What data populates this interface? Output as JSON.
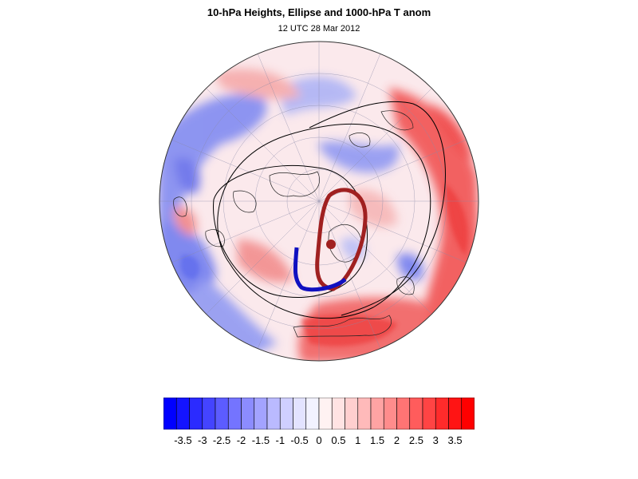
{
  "header": {
    "title": "10-hPa Heights, Ellipse and 1000-hPa T anom",
    "subtitle": "12 UTC 28 Mar 2012"
  },
  "colorbar": {
    "labels": [
      "-3.5",
      "-3",
      "-2.5",
      "-2",
      "-1.5",
      "-1",
      "-0.5",
      "0",
      "0.5",
      "1",
      "1.5",
      "2",
      "2.5",
      "3",
      "3.5"
    ],
    "colors": [
      "#0000ff",
      "#1414ff",
      "#2b2bff",
      "#4444ff",
      "#5c5cff",
      "#7474ff",
      "#8c8cff",
      "#a3a3ff",
      "#babaff",
      "#cfcfff",
      "#e3e3ff",
      "#f2f2ff",
      "#fff2f2",
      "#ffe3e3",
      "#ffcfcf",
      "#ffbaba",
      "#ffa3a3",
      "#ff8c8c",
      "#ff7474",
      "#ff5c5c",
      "#ff4444",
      "#ff2b2b",
      "#ff1414",
      "#ff0000"
    ]
  },
  "palette": {
    "cold": "#5a6cf0",
    "warm": "#f05050",
    "ellipse_cold": "#1010c0",
    "ellipse_warm": "#a02020",
    "contour": "#000000"
  }
}
